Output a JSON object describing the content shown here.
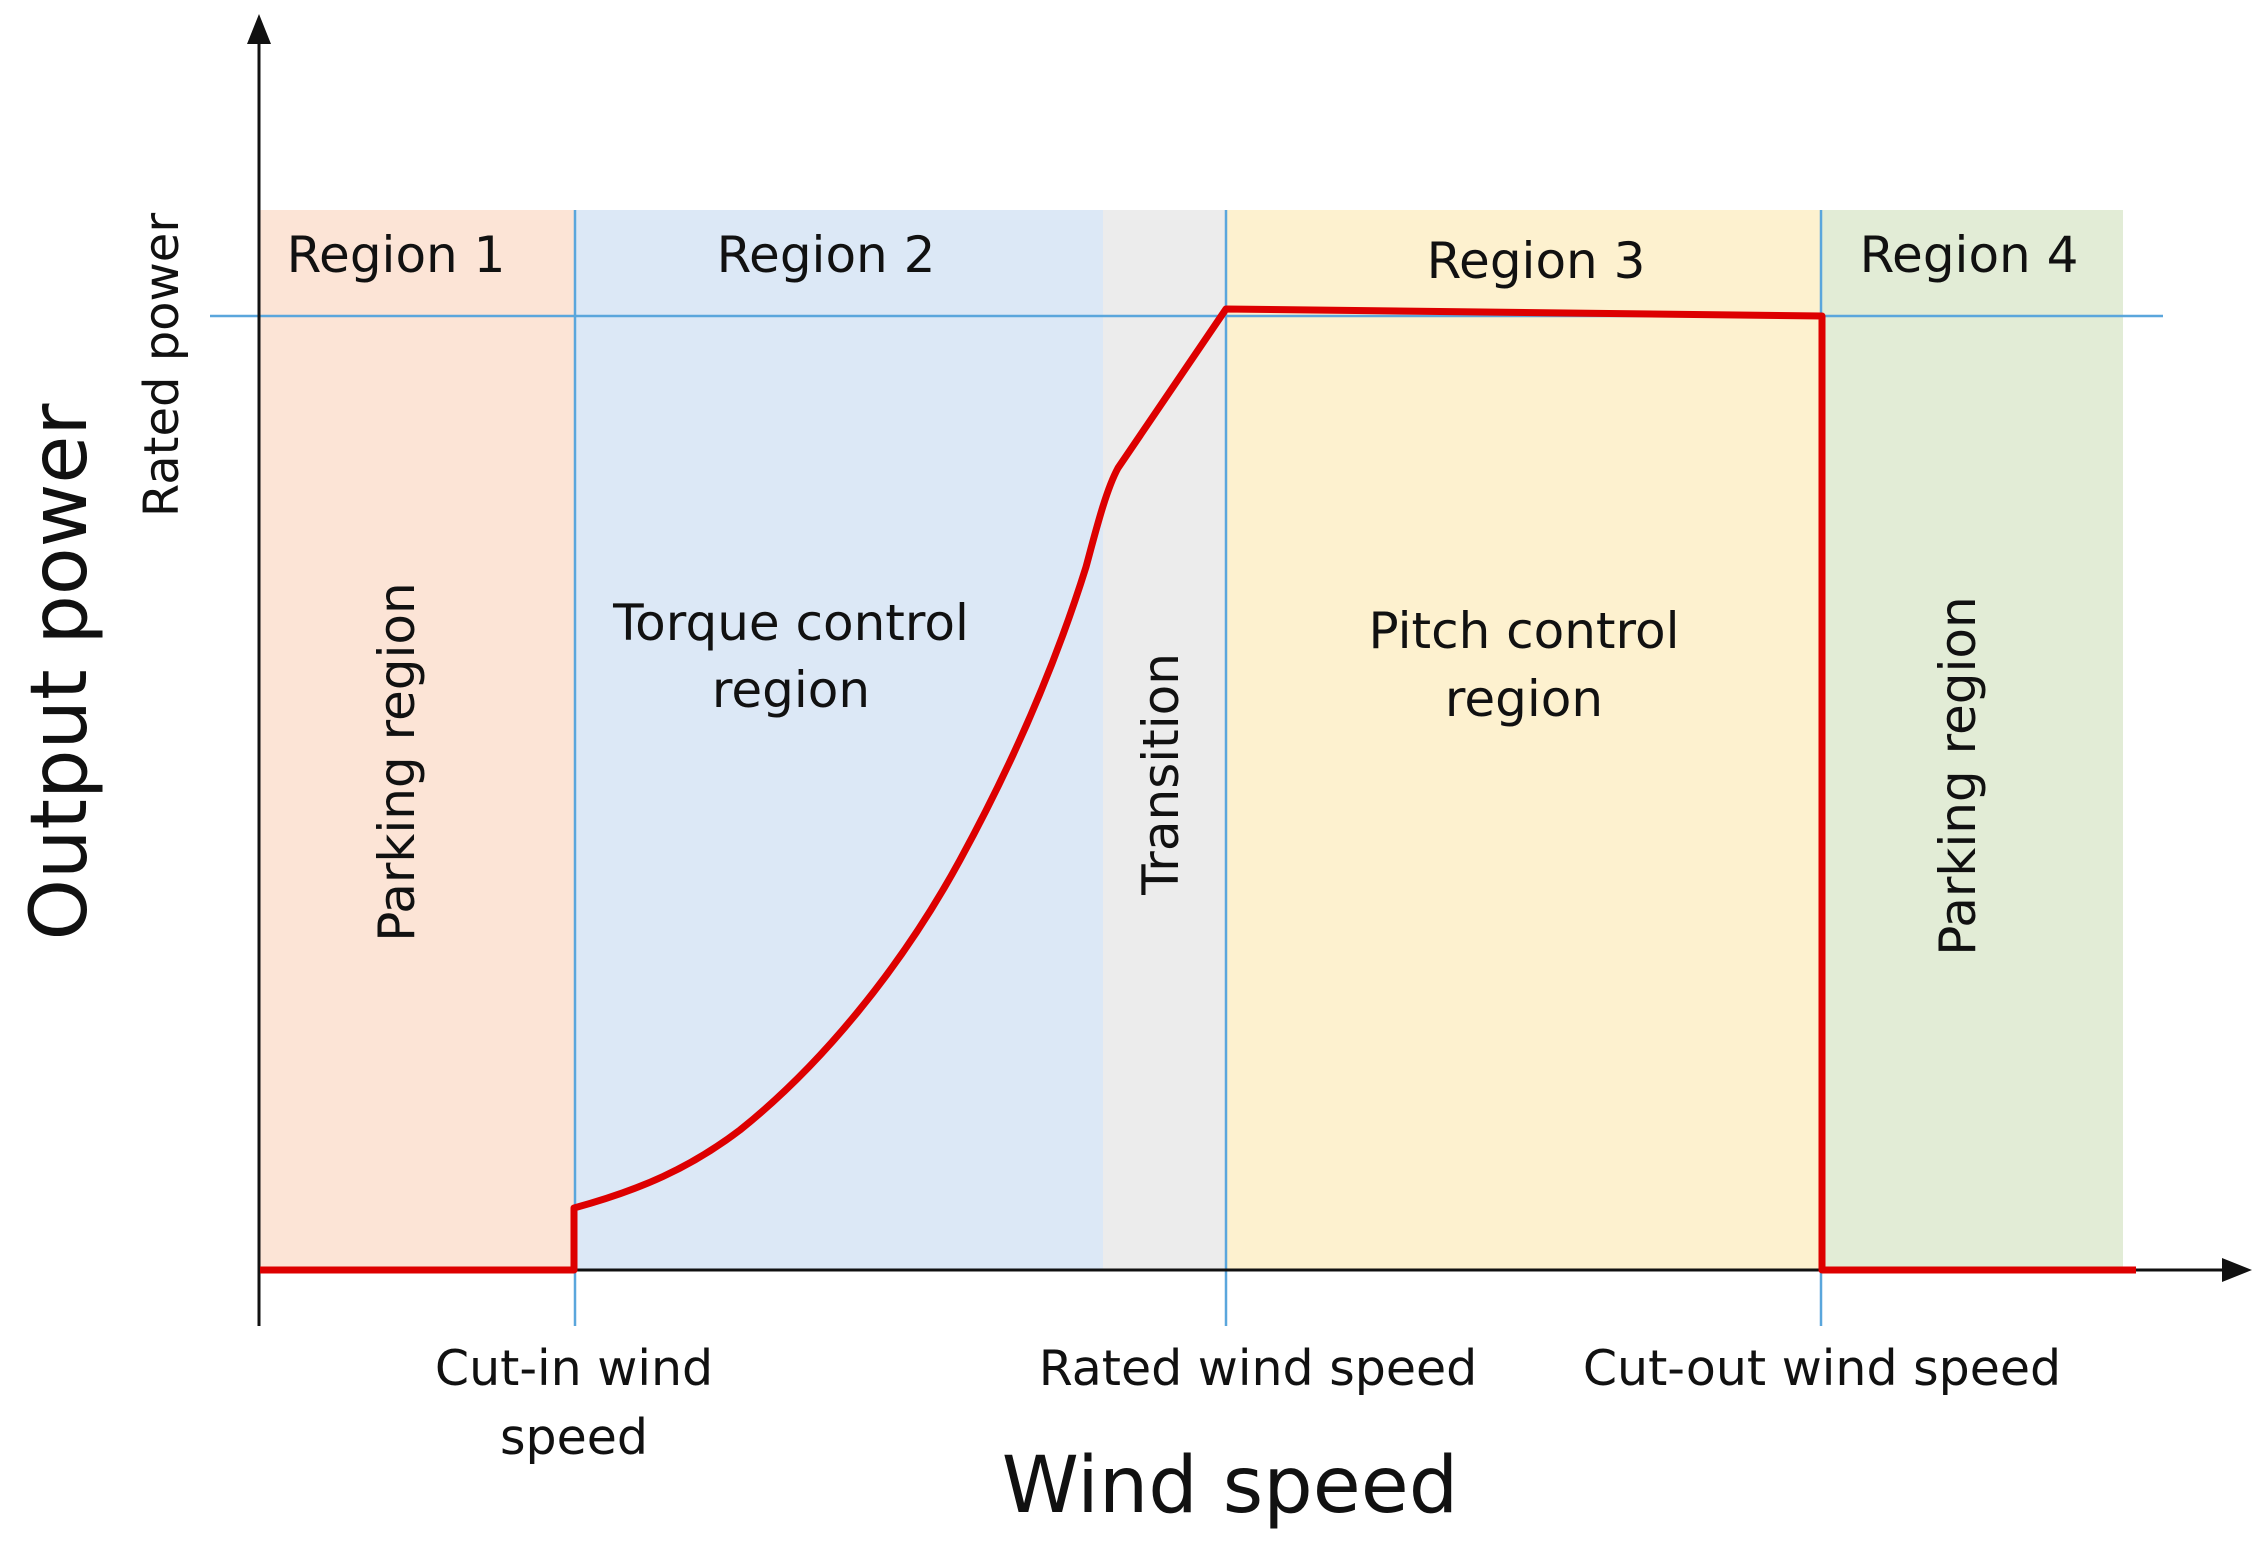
{
  "diagram": {
    "y_axis_title": "Output power",
    "x_axis_title": "Wind speed",
    "rated_power_label": "Rated power",
    "x_ticks": {
      "cut_in": [
        "Cut-in wind",
        "speed"
      ],
      "rated": "Rated wind speed",
      "cut_out": "Cut-out wind speed"
    },
    "regions": [
      {
        "title": "Region 1",
        "description": "Parking region",
        "color": "#fce4d6"
      },
      {
        "title": "Region 2",
        "description": [
          "Torque control",
          "region"
        ],
        "color": "#dce8f6"
      },
      {
        "title": "",
        "description": "Transition",
        "color": "#ececec"
      },
      {
        "title": "Region 3",
        "description": [
          "Pitch control",
          "region"
        ],
        "color": "#fdf1cf"
      },
      {
        "title": "Region 4",
        "description": "Parking region",
        "color": "#e2ecd6"
      }
    ],
    "curve_color": "#dd0000",
    "guide_line_color": "#5aa6dc"
  }
}
